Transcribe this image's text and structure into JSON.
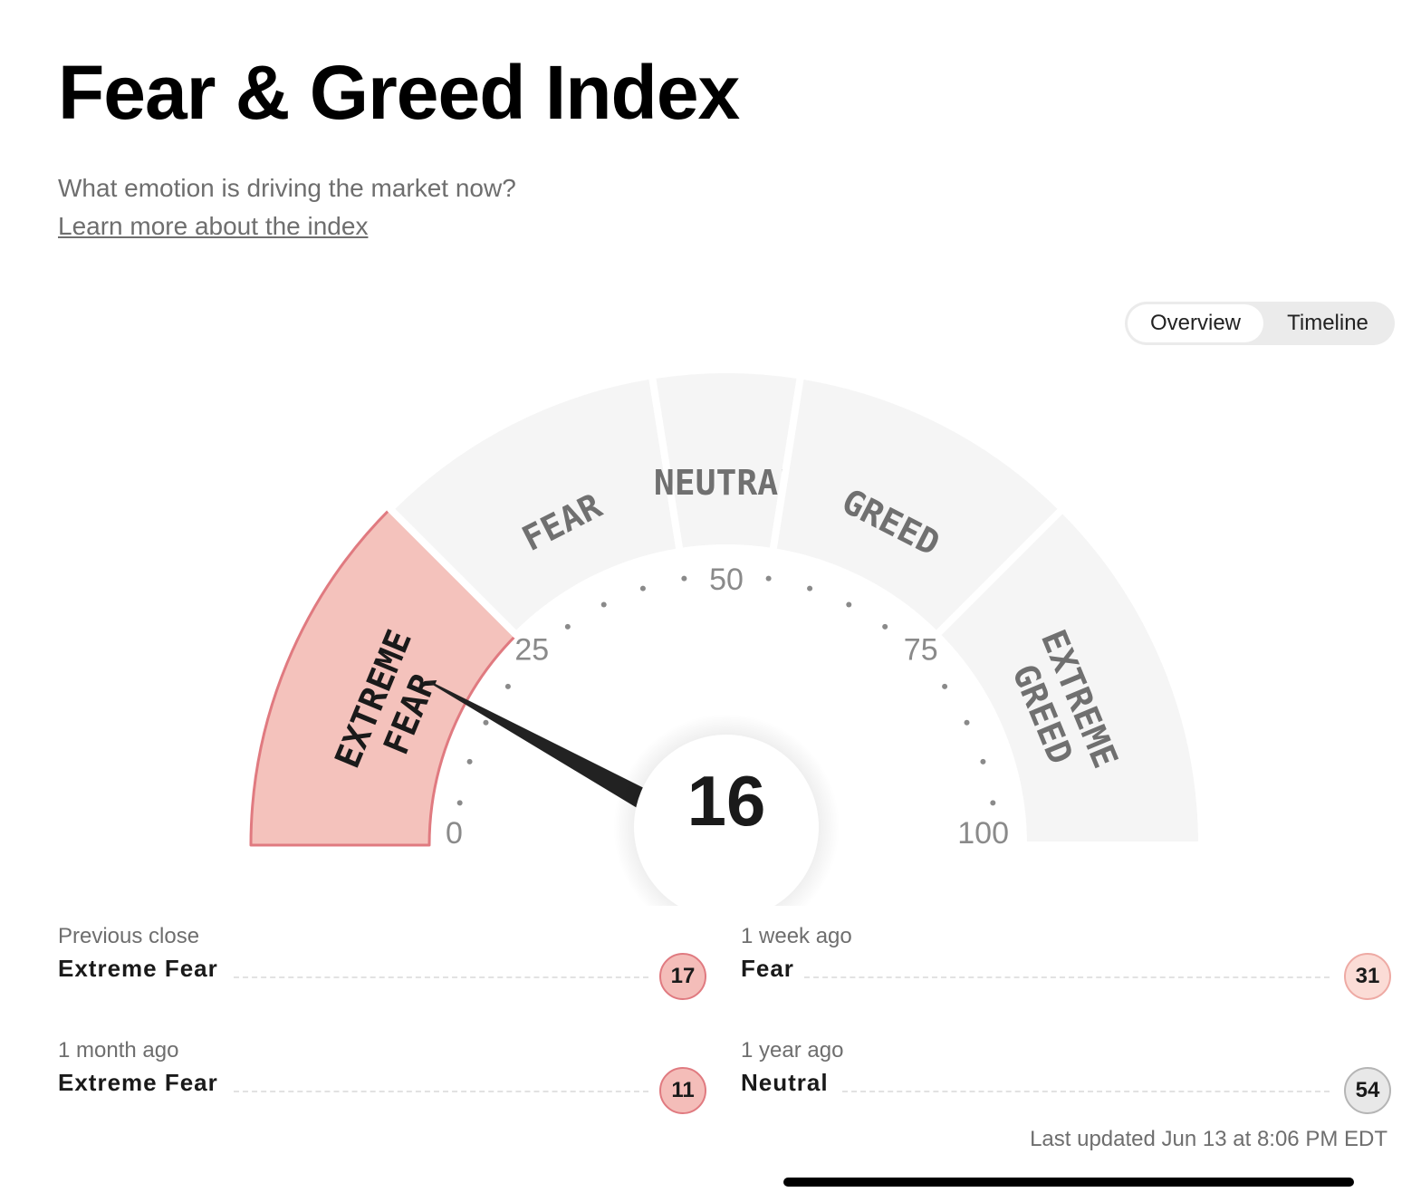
{
  "header": {
    "title": "Fear & Greed Index",
    "subtitle": "What emotion is driving the market now?",
    "learn_more": "Learn more about the index"
  },
  "view_toggle": {
    "options": [
      "Overview",
      "Timeline"
    ],
    "selected": "Overview"
  },
  "gauge": {
    "value": 16,
    "value_label": "16",
    "scale_min": 0,
    "scale_max": 100,
    "tick_labels": [
      "0",
      "25",
      "50",
      "75",
      "100"
    ],
    "active_segment": "extreme_fear",
    "segments": [
      {
        "key": "extreme_fear",
        "lines": [
          "EXTREME",
          "FEAR"
        ],
        "from": 0,
        "to": 25
      },
      {
        "key": "fear",
        "lines": [
          "FEAR"
        ],
        "from": 25,
        "to": 45
      },
      {
        "key": "neutral",
        "lines": [
          "NEUTRAL"
        ],
        "from": 45,
        "to": 55
      },
      {
        "key": "greed",
        "lines": [
          "GREED"
        ],
        "from": 55,
        "to": 75
      },
      {
        "key": "extreme_greed",
        "lines": [
          "EXTREME",
          "GREED"
        ],
        "from": 75,
        "to": 100
      }
    ],
    "colors": {
      "segment_inactive": "#f5f5f5",
      "segment_active": "#f4c2bc",
      "segment_active_border": "#e07a80",
      "segment_label": "#707070",
      "segment_label_active": "#1a1a1a",
      "needle": "#222222",
      "tick": "#8a8a8a"
    }
  },
  "history": [
    {
      "period": "Previous close",
      "label": "Extreme Fear",
      "value": "17",
      "bg": "#f4bdb9",
      "border": "#e07a80"
    },
    {
      "period": "1 week ago",
      "label": "Fear",
      "value": "31",
      "bg": "#fbdcd6",
      "border": "#eeaaa4"
    },
    {
      "period": "1 month ago",
      "label": "Extreme Fear",
      "value": "11",
      "bg": "#f4bdb9",
      "border": "#e07a80"
    },
    {
      "period": "1 year ago",
      "label": "Neutral",
      "value": "54",
      "bg": "#e8e8e8",
      "border": "#b5b5b5"
    }
  ],
  "last_updated": "Last updated Jun 13 at 8:06 PM EDT"
}
